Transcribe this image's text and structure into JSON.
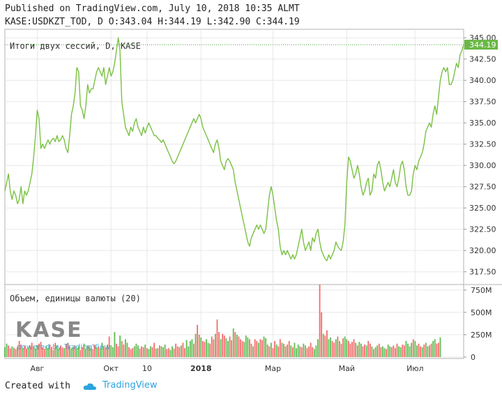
{
  "header": {
    "published": "Published on TradingView.com, July 10, 2018 10:35 ALMT",
    "ohlc": "KASE:USDKZT_TOD, D O:343.04 H:344.19 L:342.90 C:344.19"
  },
  "footer": {
    "created_with": "Created with",
    "brand": "TradingView"
  },
  "watermark": {
    "logo": "KASE",
    "powered": "powered by TradingView"
  },
  "colors": {
    "line": "#7ac143",
    "up": "#44b034",
    "down": "#ef5350",
    "price_badge": "#6ab845",
    "grid": "#e8e8e8",
    "axis_text": "#333333"
  },
  "chart_data": [
    {
      "type": "line",
      "title": "Итоги двух сессий, D, KASE",
      "last_value_label": "344.19",
      "y_ticks": [
        "317.50",
        "320.00",
        "322.50",
        "325.00",
        "327.50",
        "330.00",
        "332.50",
        "335.00",
        "337.50",
        "340.00",
        "342.50",
        "345.00"
      ],
      "ylim": [
        316,
        346
      ],
      "x_ticks": [
        {
          "label": "Авг",
          "i": 18
        },
        {
          "label": "Окт",
          "i": 59
        },
        {
          "label": "10",
          "i": 79
        },
        {
          "label": "2018",
          "i": 109
        },
        {
          "label": "Мар",
          "i": 149
        },
        {
          "label": "Май",
          "i": 190
        },
        {
          "label": "Июл",
          "i": 228
        }
      ],
      "values": [
        327.0,
        328.0,
        329.0,
        327.0,
        326.0,
        327.0,
        326.5,
        325.5,
        326.0,
        327.5,
        325.5,
        327.0,
        326.5,
        327.0,
        328.0,
        329.0,
        331.0,
        333.5,
        336.5,
        335.5,
        332.0,
        332.5,
        332.0,
        332.5,
        333.0,
        332.5,
        333.0,
        333.2,
        332.8,
        333.5,
        332.8,
        333.0,
        333.5,
        333.0,
        332.0,
        331.5,
        333.5,
        336.0,
        337.0,
        338.5,
        341.5,
        341.0,
        337.0,
        336.5,
        335.5,
        337.0,
        339.5,
        338.5,
        339.0,
        339.0,
        340.0,
        341.0,
        341.5,
        341.0,
        340.5,
        341.5,
        339.5,
        340.5,
        341.5,
        340.5,
        341.0,
        342.0,
        343.5,
        345.0,
        343.5,
        337.5,
        336.0,
        334.5,
        334.0,
        333.5,
        334.5,
        334.0,
        335.0,
        335.5,
        334.5,
        334.0,
        333.5,
        334.5,
        333.8,
        334.5,
        335.0,
        334.5,
        334.0,
        333.5,
        333.5,
        333.2,
        333.0,
        332.7,
        333.0,
        332.5,
        332.0,
        331.5,
        331.0,
        330.5,
        330.2,
        330.5,
        331.0,
        331.5,
        332.0,
        332.5,
        333.0,
        333.5,
        334.0,
        334.5,
        335.0,
        335.5,
        335.0,
        335.5,
        336.0,
        335.5,
        334.5,
        334.0,
        333.5,
        333.0,
        332.5,
        332.0,
        331.5,
        332.5,
        333.0,
        332.0,
        330.5,
        330.0,
        329.5,
        330.5,
        330.8,
        330.5,
        330.0,
        329.5,
        328.0,
        327.0,
        326.0,
        325.0,
        324.0,
        323.0,
        322.0,
        321.0,
        320.5,
        321.5,
        322.0,
        322.5,
        323.0,
        322.5,
        323.0,
        322.5,
        322.0,
        322.5,
        324.5,
        326.5,
        327.5,
        326.5,
        325.0,
        323.5,
        322.5,
        320.5,
        319.5,
        320.0,
        319.5,
        320.0,
        319.5,
        319.0,
        319.5,
        319.0,
        319.5,
        320.5,
        321.5,
        322.5,
        321.0,
        320.0,
        320.5,
        321.0,
        320.0,
        321.5,
        321.0,
        322.0,
        322.5,
        321.0,
        320.0,
        319.5,
        319.0,
        318.8,
        319.5,
        319.0,
        319.5,
        320.0,
        321.0,
        320.5,
        320.2,
        320.0,
        321.0,
        323.0,
        328.0,
        331.0,
        330.5,
        329.5,
        328.5,
        329.0,
        330.0,
        329.0,
        327.5,
        326.5,
        327.0,
        328.0,
        328.5,
        326.5,
        327.0,
        329.0,
        328.5,
        330.0,
        330.5,
        329.5,
        328.0,
        327.0,
        327.5,
        328.0,
        327.5,
        328.5,
        329.5,
        328.0,
        327.5,
        328.5,
        330.0,
        330.5,
        329.5,
        327.5,
        326.5,
        326.5,
        327.0,
        329.0,
        330.0,
        329.5,
        330.5,
        331.0,
        331.5,
        332.5,
        334.0,
        334.5,
        335.0,
        334.5,
        336.0,
        337.0,
        336.0,
        338.0,
        340.0,
        341.0,
        341.5,
        341.0,
        341.5,
        339.5,
        339.5,
        340.0,
        341.0,
        342.0,
        341.5,
        343.0,
        343.5,
        344.19
      ]
    },
    {
      "type": "bar",
      "title": "Объем, единицы валюты (20)",
      "y_ticks": [
        "0",
        "250M",
        "500M",
        "750M"
      ],
      "ylim": [
        0,
        780
      ],
      "values": [
        110,
        150,
        130,
        95,
        120,
        105,
        90,
        115,
        180,
        140,
        100,
        125,
        95,
        110,
        130,
        160,
        120,
        95,
        135,
        150,
        170,
        110,
        90,
        120,
        100,
        140,
        115,
        80,
        160,
        130,
        95,
        125,
        110,
        100,
        140,
        160,
        120,
        95,
        110,
        130,
        100,
        120,
        80,
        110,
        150,
        95,
        130,
        120,
        100,
        90,
        140,
        110,
        115,
        95,
        160,
        120,
        100,
        140,
        230,
        130,
        110,
        280,
        150,
        120,
        240,
        180,
        140,
        200,
        160,
        110,
        90,
        100,
        120,
        150,
        130,
        95,
        120,
        110,
        140,
        100,
        90,
        120,
        110,
        160,
        95,
        100,
        130,
        120,
        110,
        140,
        90,
        100,
        80,
        120,
        95,
        150,
        120,
        110,
        130,
        160,
        100,
        190,
        120,
        180,
        200,
        150,
        260,
        360,
        250,
        220,
        180,
        170,
        200,
        160,
        150,
        230,
        200,
        260,
        420,
        280,
        200,
        260,
        240,
        210,
        180,
        230,
        190,
        320,
        280,
        250,
        230,
        200,
        180,
        170,
        240,
        220,
        200,
        150,
        120,
        200,
        180,
        160,
        200,
        190,
        230,
        210,
        140,
        120,
        160,
        100,
        180,
        140,
        120,
        200,
        160,
        150,
        120,
        140,
        180,
        130,
        110,
        160,
        100,
        140,
        120,
        110,
        150,
        130,
        100,
        120,
        160,
        110,
        90,
        130,
        200,
        810,
        500,
        260,
        240,
        300,
        200,
        220,
        180,
        160,
        200,
        230,
        180,
        150,
        210,
        230,
        200,
        180,
        150,
        170,
        200,
        160,
        130,
        170,
        150,
        120,
        140,
        130,
        180,
        150,
        120,
        90,
        110,
        130,
        150,
        110,
        120,
        100,
        90,
        140,
        120,
        110,
        130,
        100,
        150,
        120,
        110,
        140,
        130,
        180,
        150,
        120,
        160,
        200,
        180,
        130,
        150,
        120,
        110,
        140,
        160,
        120,
        130,
        150,
        180,
        200,
        150,
        160,
        220
      ],
      "directions": "uudduddudduddudduuudddduudduduuddudduuuduudduuduudduduudduduuuddudduuddduuuddduduuddudduuudduuddddudduuuududdudduuddduddudduuddududdduuudduddudduuddudduddududduduuudduudddduuuddudduuddududduudddduduuddudduduudduuduudddduudduuuuduudduduudd"
    }
  ]
}
